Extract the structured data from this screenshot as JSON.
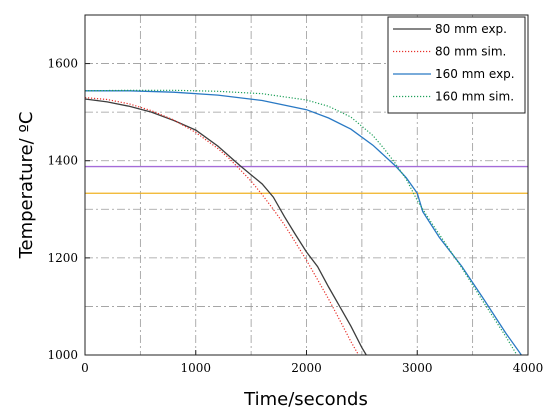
{
  "chart_data": {
    "type": "line",
    "title": "",
    "xlabel": "Time/seconds",
    "ylabel": "Temperature/ ºC",
    "xlim": [
      0,
      4000
    ],
    "ylim": [
      1000,
      1700
    ],
    "xticks": [
      0,
      1000,
      2000,
      3000,
      4000
    ],
    "yticks": [
      1000,
      1200,
      1400,
      1600
    ],
    "grid": true,
    "legend_position": "top-right",
    "series": [
      {
        "name": "80 mm exp.",
        "color": "#3d3d3d",
        "style": "solid",
        "x": [
          0,
          200,
          400,
          600,
          800,
          1000,
          1200,
          1400,
          1600,
          1700,
          1800,
          1900,
          2000,
          2100,
          2200,
          2300,
          2400,
          2500,
          2540
        ],
        "y": [
          1527,
          1521,
          1512,
          1500,
          1483,
          1463,
          1430,
          1390,
          1352,
          1325,
          1285,
          1248,
          1212,
          1182,
          1140,
          1100,
          1060,
          1015,
          1000
        ]
      },
      {
        "name": "80 mm sim.",
        "color": "#e8302a",
        "style": "dotted",
        "x": [
          0,
          200,
          400,
          600,
          800,
          1000,
          1200,
          1300,
          1400,
          1500,
          1600,
          1700,
          1800,
          1900,
          2000,
          2100,
          2200,
          2300,
          2400,
          2470
        ],
        "y": [
          1530,
          1526,
          1517,
          1503,
          1484,
          1458,
          1425,
          1405,
          1382,
          1358,
          1330,
          1300,
          1268,
          1232,
          1195,
          1155,
          1115,
          1072,
          1028,
          1000
        ]
      },
      {
        "name": "160 mm exp.",
        "color": "#2979c4",
        "style": "solid",
        "x": [
          0,
          400,
          800,
          1200,
          1600,
          2000,
          2200,
          2400,
          2600,
          2800,
          2900,
          3000,
          3050,
          3200,
          3400,
          3600,
          3800,
          3940
        ],
        "y": [
          1544,
          1544,
          1541,
          1535,
          1524,
          1505,
          1488,
          1465,
          1432,
          1390,
          1365,
          1333,
          1295,
          1242,
          1183,
          1115,
          1045,
          1000
        ]
      },
      {
        "name": "160 mm sim.",
        "color": "#1fa05a",
        "style": "dotted",
        "x": [
          0,
          400,
          800,
          1200,
          1600,
          2000,
          2200,
          2400,
          2600,
          2700,
          2800,
          2900,
          3000,
          3100,
          3200,
          3400,
          3600,
          3800,
          3900
        ],
        "y": [
          1544,
          1545,
          1545,
          1543,
          1538,
          1525,
          1512,
          1490,
          1452,
          1425,
          1395,
          1362,
          1318,
          1282,
          1248,
          1180,
          1108,
          1038,
          1000
        ]
      }
    ],
    "reference_lines": [
      {
        "y": 1388,
        "color": "#a46cd8"
      },
      {
        "y": 1333,
        "color": "#f0b323"
      }
    ]
  }
}
